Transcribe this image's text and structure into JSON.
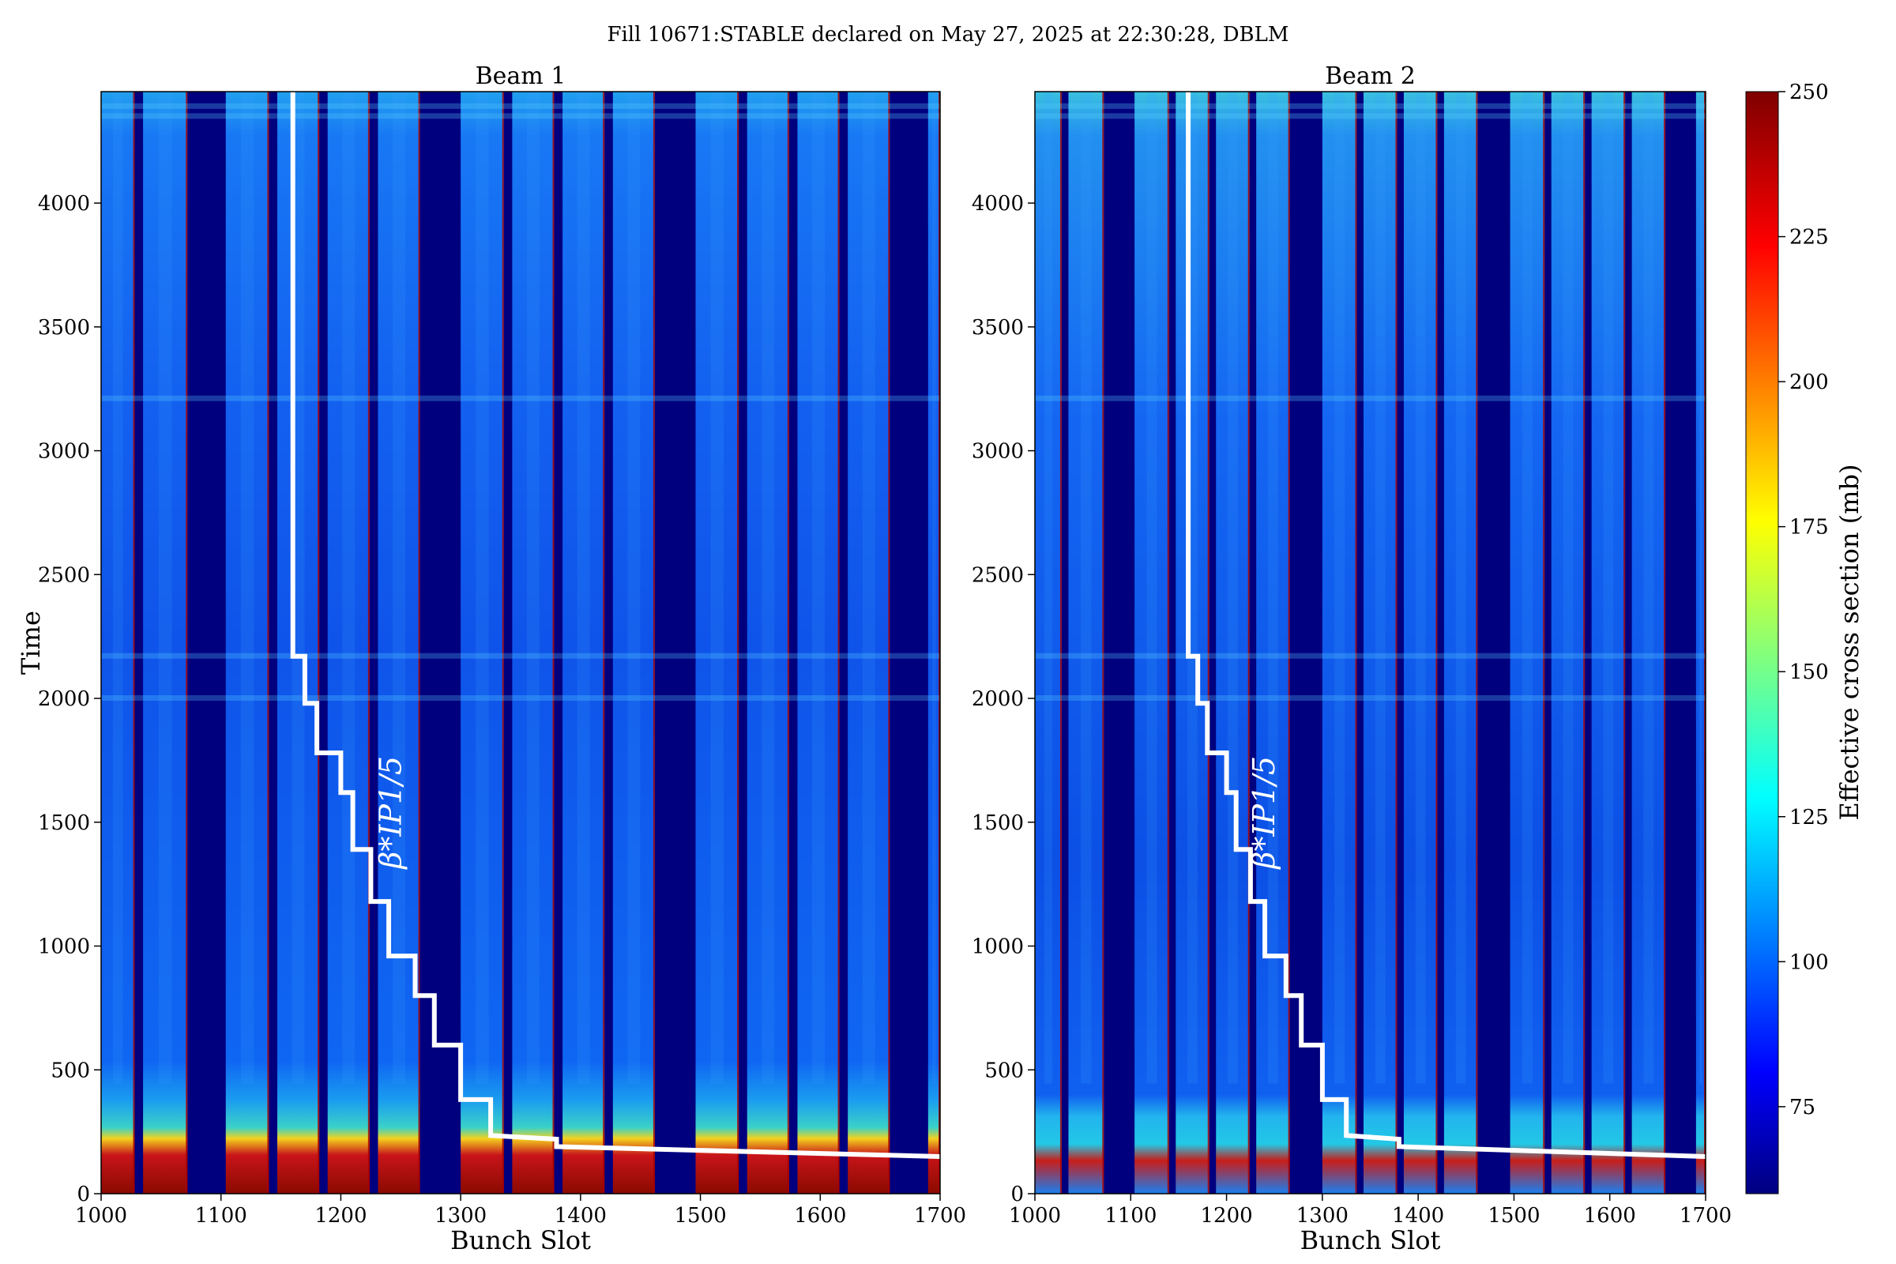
{
  "figure": {
    "suptitle": "Fill 10671:STABLE declared on May 27, 2025 at 22:30:28, DBLM"
  },
  "colorbar": {
    "label": "Effective cross section (mb)",
    "range": [
      60,
      250
    ],
    "ticks": [
      75,
      100,
      125,
      150,
      175,
      200,
      225,
      250
    ],
    "colormap": "jet"
  },
  "chart_data": [
    {
      "type": "heatmap",
      "title": "Beam 1",
      "xlabel": "Bunch Slot",
      "ylabel": "Time",
      "xlim": [
        1000,
        1700
      ],
      "ylim": [
        0,
        4450
      ],
      "xticks": [
        1000,
        1100,
        1200,
        1300,
        1400,
        1500,
        1600,
        1700
      ],
      "yticks": [
        0,
        500,
        1000,
        1500,
        2000,
        2500,
        3000,
        3500,
        4000
      ],
      "filled_trains": [
        [
          1000,
          1028
        ],
        [
          1035,
          1072
        ],
        [
          1104,
          1140
        ],
        [
          1147,
          1182
        ],
        [
          1189,
          1224
        ],
        [
          1231,
          1266
        ],
        [
          1300,
          1336
        ],
        [
          1343,
          1378
        ],
        [
          1385,
          1420
        ],
        [
          1427,
          1462
        ],
        [
          1496,
          1532
        ],
        [
          1539,
          1574
        ],
        [
          1581,
          1616
        ],
        [
          1623,
          1658
        ],
        [
          1690,
          1700
        ]
      ],
      "annotation": "β*IP1/5",
      "beta_star_staircase": {
        "x": [
          1160,
          1160,
          1170,
          1170,
          1180,
          1180,
          1200,
          1200,
          1210,
          1210,
          1225,
          1225,
          1240,
          1240,
          1262,
          1262,
          1278,
          1278,
          1300,
          1300,
          1325,
          1325,
          1380,
          1380,
          1700
        ],
        "y": [
          4450,
          2170,
          2170,
          1980,
          1980,
          1780,
          1780,
          1620,
          1620,
          1390,
          1390,
          1180,
          1180,
          960,
          960,
          800,
          800,
          600,
          600,
          380,
          380,
          235,
          220,
          190,
          150
        ]
      }
    },
    {
      "type": "heatmap",
      "title": "Beam 2",
      "xlabel": "Bunch Slot",
      "ylabel": "",
      "xlim": [
        1000,
        1700
      ],
      "ylim": [
        0,
        4450
      ],
      "xticks": [
        1000,
        1100,
        1200,
        1300,
        1400,
        1500,
        1600,
        1700
      ],
      "yticks": [
        0,
        500,
        1000,
        1500,
        2000,
        2500,
        3000,
        3500,
        4000
      ],
      "filled_trains": [
        [
          1000,
          1028
        ],
        [
          1035,
          1072
        ],
        [
          1104,
          1140
        ],
        [
          1147,
          1182
        ],
        [
          1189,
          1224
        ],
        [
          1231,
          1266
        ],
        [
          1300,
          1336
        ],
        [
          1343,
          1378
        ],
        [
          1385,
          1420
        ],
        [
          1427,
          1462
        ],
        [
          1496,
          1532
        ],
        [
          1539,
          1574
        ],
        [
          1581,
          1616
        ],
        [
          1623,
          1658
        ],
        [
          1690,
          1700
        ]
      ],
      "annotation": "β*IP1/5",
      "beta_star_staircase": {
        "x": [
          1160,
          1160,
          1170,
          1170,
          1180,
          1180,
          1200,
          1200,
          1210,
          1210,
          1225,
          1225,
          1240,
          1240,
          1262,
          1262,
          1278,
          1278,
          1300,
          1300,
          1325,
          1325,
          1380,
          1380,
          1700
        ],
        "y": [
          4450,
          2170,
          2170,
          1980,
          1980,
          1780,
          1780,
          1620,
          1620,
          1390,
          1390,
          1180,
          1180,
          960,
          960,
          800,
          800,
          600,
          600,
          380,
          380,
          235,
          220,
          190,
          150
        ]
      }
    }
  ]
}
